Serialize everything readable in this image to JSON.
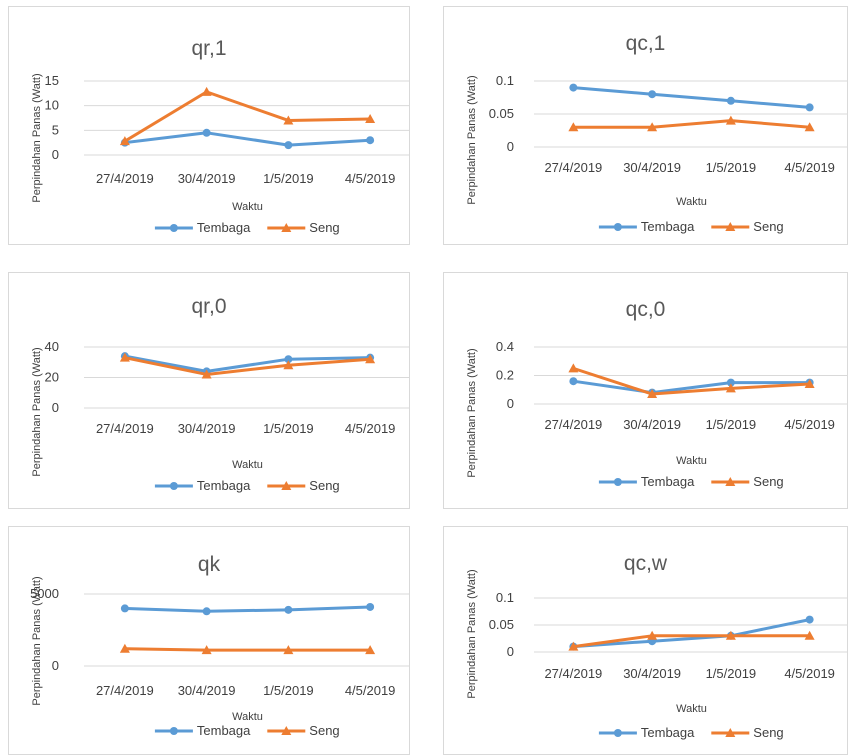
{
  "chart_data": [
    {
      "type": "line",
      "title": "qr,1",
      "xlabel": "Waktu",
      "ylabel": "Perpindahan Panas (Watt)",
      "categories": [
        "27/4/2019",
        "30/4/2019",
        "1/5/2019",
        "4/5/2019"
      ],
      "yticks": [
        0,
        5,
        10,
        15
      ],
      "yticklabels": [
        "0",
        "5",
        "10",
        "15"
      ],
      "ylim": [
        0,
        15
      ],
      "grid": true,
      "legend_position": "bottom",
      "series": [
        {
          "name": "Tembaga",
          "color": "#5b9bd5",
          "marker": "circle",
          "values": [
            2.5,
            4.5,
            2,
            3
          ]
        },
        {
          "name": "Seng",
          "color": "#ed7d31",
          "marker": "triangle",
          "values": [
            2.8,
            12.8,
            7,
            7.3
          ]
        }
      ]
    },
    {
      "type": "line",
      "title": "qc,1",
      "xlabel": "Waktu",
      "ylabel": "Perpindahan Panas (Watt)",
      "categories": [
        "27/4/2019",
        "30/4/2019",
        "1/5/2019",
        "4/5/2019"
      ],
      "yticks": [
        0,
        0.05,
        0.1
      ],
      "yticklabels": [
        "0",
        "0.05",
        "0.1"
      ],
      "ylim": [
        0,
        0.1
      ],
      "grid": true,
      "legend_position": "bottom",
      "series": [
        {
          "name": "Tembaga",
          "color": "#5b9bd5",
          "marker": "circle",
          "values": [
            0.09,
            0.08,
            0.07,
            0.06
          ]
        },
        {
          "name": "Seng",
          "color": "#ed7d31",
          "marker": "triangle",
          "values": [
            0.03,
            0.03,
            0.04,
            0.03
          ]
        }
      ]
    },
    {
      "type": "line",
      "title": "qr,0",
      "xlabel": "Waktu",
      "ylabel": "Perpindahan Panas (Watt)",
      "categories": [
        "27/4/2019",
        "30/4/2019",
        "1/5/2019",
        "4/5/2019"
      ],
      "yticks": [
        0,
        20,
        40
      ],
      "yticklabels": [
        "0",
        "20",
        "40"
      ],
      "ylim": [
        0,
        40
      ],
      "grid": true,
      "legend_position": "bottom",
      "series": [
        {
          "name": "Tembaga",
          "color": "#5b9bd5",
          "marker": "circle",
          "values": [
            34,
            24,
            32,
            33
          ]
        },
        {
          "name": "Seng",
          "color": "#ed7d31",
          "marker": "triangle",
          "values": [
            33,
            22,
            28,
            32
          ]
        }
      ]
    },
    {
      "type": "line",
      "title": "qc,0",
      "xlabel": "Waktu",
      "ylabel": "Perpindahan Panas (Watt)",
      "categories": [
        "27/4/2019",
        "30/4/2019",
        "1/5/2019",
        "4/5/2019"
      ],
      "yticks": [
        0,
        0.2,
        0.4
      ],
      "yticklabels": [
        "0",
        "0.2",
        "0.4"
      ],
      "ylim": [
        0,
        0.4
      ],
      "grid": true,
      "legend_position": "bottom",
      "series": [
        {
          "name": "Tembaga",
          "color": "#5b9bd5",
          "marker": "circle",
          "values": [
            0.16,
            0.08,
            0.15,
            0.15
          ]
        },
        {
          "name": "Seng",
          "color": "#ed7d31",
          "marker": "triangle",
          "values": [
            0.25,
            0.07,
            0.11,
            0.14
          ]
        }
      ]
    },
    {
      "type": "line",
      "title": "qk",
      "xlabel": "Waktu",
      "ylabel": "Perpindahan Panas (Watt)",
      "categories": [
        "27/4/2019",
        "30/4/2019",
        "1/5/2019",
        "4/5/2019"
      ],
      "yticks": [
        0,
        5000
      ],
      "yticklabels": [
        "0",
        "5000"
      ],
      "ylim": [
        0,
        5000
      ],
      "grid": true,
      "legend_position": "bottom",
      "series": [
        {
          "name": "Tembaga",
          "color": "#5b9bd5",
          "marker": "circle",
          "values": [
            4000,
            3800,
            3900,
            4100
          ]
        },
        {
          "name": "Seng",
          "color": "#ed7d31",
          "marker": "triangle",
          "values": [
            1200,
            1100,
            1100,
            1100
          ]
        }
      ]
    },
    {
      "type": "line",
      "title": "qc,w",
      "xlabel": "Waktu",
      "ylabel": "Perpindahan Panas (Watt)",
      "categories": [
        "27/4/2019",
        "30/4/2019",
        "1/5/2019",
        "4/5/2019"
      ],
      "yticks": [
        0,
        0.05,
        0.1
      ],
      "yticklabels": [
        "0",
        "0.05",
        "0.1"
      ],
      "ylim": [
        0,
        0.1
      ],
      "grid": true,
      "legend_position": "bottom",
      "series": [
        {
          "name": "Tembaga",
          "color": "#5b9bd5",
          "marker": "circle",
          "values": [
            0.01,
            0.02,
            0.03,
            0.06
          ]
        },
        {
          "name": "Seng",
          "color": "#ed7d31",
          "marker": "triangle",
          "values": [
            0.01,
            0.03,
            0.03,
            0.03
          ]
        }
      ]
    }
  ]
}
